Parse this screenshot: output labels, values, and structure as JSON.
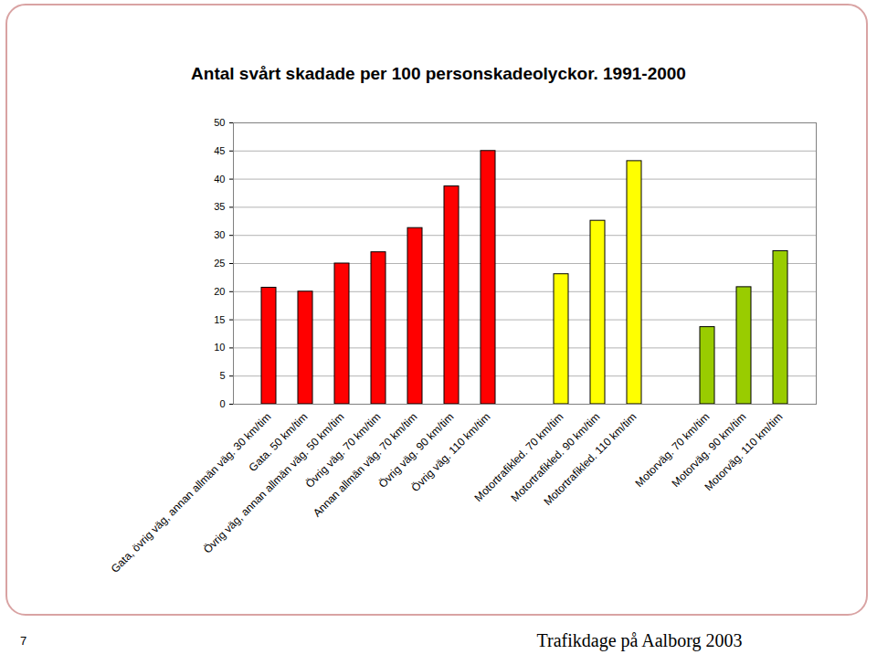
{
  "chart_data": {
    "type": "bar",
    "title": "Antal svårt skadade per 100 personskadeolyckor. 1991-2000",
    "categories": [
      "Gata, övrig väg, annan allmän väg. 30 km/tim",
      "Gata. 50 km/tim",
      "Övrig väg, annan allmän väg. 50 km/tim",
      "Övrig väg. 70 km/tim",
      "Annan allmän väg. 70 km/tim",
      "Övrig väg. 90 km/tim",
      "Övrig väg. 110 km/tim",
      null,
      "Motortrafikled. 70 km/tim",
      "Motortrafikled. 90 km/tim",
      "Motortrafikled. 110 km/tim",
      null,
      "Motorväg. 70 km/tim",
      "Motorväg. 90 km/tim",
      "Motorväg. 110 km/tim"
    ],
    "values": [
      20.7,
      20,
      25,
      27,
      31.3,
      38.7,
      45,
      null,
      23.1,
      32.6,
      43.2,
      null,
      13.7,
      20.8,
      27.2
    ],
    "colors": [
      "#ff0000",
      "#ff0000",
      "#ff0000",
      "#ff0000",
      "#ff0000",
      "#ff0000",
      "#ff0000",
      null,
      "#ffff00",
      "#ffff00",
      "#ffff00",
      null,
      "#99cc00",
      "#99cc00",
      "#99cc00"
    ],
    "ylim": [
      0,
      50
    ],
    "yticks": [
      0,
      5,
      10,
      15,
      20,
      25,
      30,
      35,
      40,
      45,
      50
    ],
    "grid": true,
    "annotations": [
      "7",
      "Trafikdage på Aalborg 2003"
    ]
  }
}
